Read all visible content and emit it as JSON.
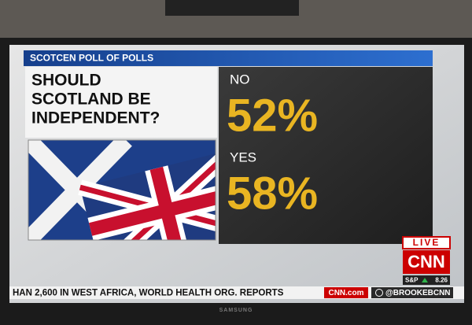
{
  "header": {
    "title": "SCOTCEN POLL OF POLLS"
  },
  "question": [
    "SHOULD",
    "SCOTLAND BE",
    "INDEPENDENT?"
  ],
  "answers": [
    {
      "label": "NO",
      "value": "52%"
    },
    {
      "label": "YES",
      "value": "58%"
    }
  ],
  "bug": {
    "live": "LIVE",
    "logo": "CNN"
  },
  "market": {
    "index": "S&P",
    "change": "8.26"
  },
  "ticker": {
    "text": "HAN 2,600 IN WEST AFRICA, WORLD HEALTH ORG. REPORTS",
    "site": "CNN.com",
    "handle": "@BROOKEBCNN"
  },
  "tv": {
    "brand": "SAMSUNG"
  }
}
